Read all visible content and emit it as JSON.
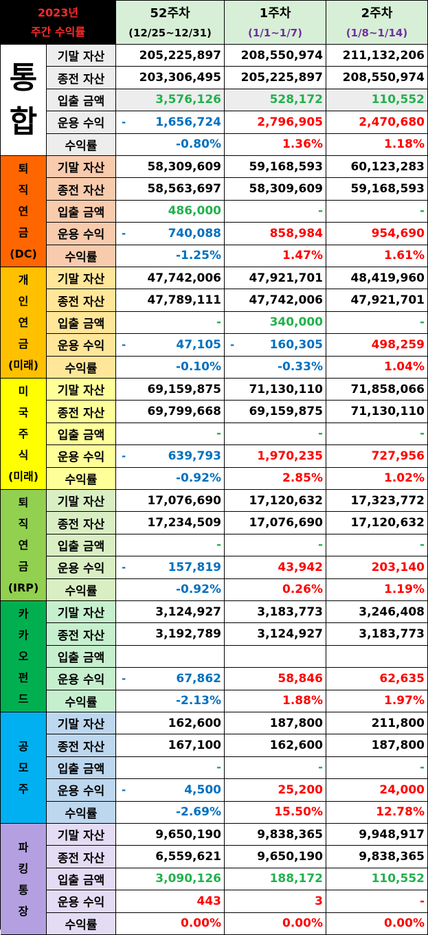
{
  "header": {
    "year_label": "2023년",
    "subtitle": "주간 수익률",
    "weeks": [
      {
        "week": "52주차",
        "range": "(12/25~12/31)",
        "range_color": "#000000"
      },
      {
        "week": "1주차",
        "range": "(1/1~1/7)",
        "range_color": "#7030a0"
      },
      {
        "week": "2주차",
        "range": "(1/8~1/14)",
        "range_color": "#7030a0"
      }
    ]
  },
  "row_labels": [
    "기말 자산",
    "종전 자산",
    "입출 금액",
    "운용 수익",
    "수익률"
  ],
  "groups": [
    {
      "id": "total",
      "title": [
        "통",
        "합"
      ],
      "big": true,
      "title_color": "#000000",
      "title_bg": "#ffffff",
      "label_bg": "#ededed",
      "row_bg": [
        "#ffffff",
        "#ffffff",
        "#ededed",
        "#ffffff",
        "#ffffff"
      ],
      "rows": [
        [
          {
            "v": "205,225,897",
            "c": "black"
          },
          {
            "v": "208,550,974",
            "c": "black"
          },
          {
            "v": "211,132,206",
            "c": "black"
          }
        ],
        [
          {
            "v": "203,306,495",
            "c": "black"
          },
          {
            "v": "205,225,897",
            "c": "black"
          },
          {
            "v": "208,550,974",
            "c": "black"
          }
        ],
        [
          {
            "v": "3,576,126",
            "c": "green"
          },
          {
            "v": "528,172",
            "c": "green"
          },
          {
            "v": "110,552",
            "c": "green"
          }
        ],
        [
          {
            "v": "1,656,724",
            "c": "blue",
            "dash": "-"
          },
          {
            "v": "2,796,905",
            "c": "red"
          },
          {
            "v": "2,470,680",
            "c": "red"
          }
        ],
        [
          {
            "v": "-0.80%",
            "c": "blue"
          },
          {
            "v": "1.36%",
            "c": "red"
          },
          {
            "v": "1.18%",
            "c": "red"
          }
        ]
      ]
    },
    {
      "id": "pension-dc",
      "title": [
        "퇴",
        "직",
        "연",
        "금",
        "(DC)"
      ],
      "big": false,
      "title_color": "#000000",
      "title_bg": "#ff6600",
      "label_bg": "#f8cbad",
      "row_bg": [
        "#ffffff",
        "#ffffff",
        "#ffffff",
        "#ffffff",
        "#ffffff"
      ],
      "rows": [
        [
          {
            "v": "58,309,609",
            "c": "black"
          },
          {
            "v": "59,168,593",
            "c": "black"
          },
          {
            "v": "60,123,283",
            "c": "black"
          }
        ],
        [
          {
            "v": "58,563,697",
            "c": "black"
          },
          {
            "v": "58,309,609",
            "c": "black"
          },
          {
            "v": "59,168,593",
            "c": "black"
          }
        ],
        [
          {
            "v": "486,000",
            "c": "green"
          },
          {
            "v": "-",
            "c": "green"
          },
          {
            "v": "-",
            "c": "green"
          }
        ],
        [
          {
            "v": "740,088",
            "c": "blue",
            "dash": "-"
          },
          {
            "v": "858,984",
            "c": "red"
          },
          {
            "v": "954,690",
            "c": "red"
          }
        ],
        [
          {
            "v": "-1.25%",
            "c": "blue"
          },
          {
            "v": "1.47%",
            "c": "red"
          },
          {
            "v": "1.61%",
            "c": "red"
          }
        ]
      ]
    },
    {
      "id": "personal-pension",
      "title": [
        "개",
        "인",
        "연",
        "금",
        "(미래)"
      ],
      "big": false,
      "title_color": "#000000",
      "title_bg": "#ffc000",
      "label_bg": "#ffe699",
      "row_bg": [
        "#ffffff",
        "#ffffff",
        "#ffffff",
        "#ffffff",
        "#ffffff"
      ],
      "rows": [
        [
          {
            "v": "47,742,006",
            "c": "black"
          },
          {
            "v": "47,921,701",
            "c": "black"
          },
          {
            "v": "48,419,960",
            "c": "black"
          }
        ],
        [
          {
            "v": "47,789,111",
            "c": "black"
          },
          {
            "v": "47,742,006",
            "c": "black"
          },
          {
            "v": "47,921,701",
            "c": "black"
          }
        ],
        [
          {
            "v": "-",
            "c": "green"
          },
          {
            "v": "340,000",
            "c": "green"
          },
          {
            "v": "-",
            "c": "green"
          }
        ],
        [
          {
            "v": "47,105",
            "c": "blue",
            "dash": "-"
          },
          {
            "v": "160,305",
            "c": "blue",
            "dash": "-"
          },
          {
            "v": "498,259",
            "c": "red"
          }
        ],
        [
          {
            "v": "-0.10%",
            "c": "blue"
          },
          {
            "v": "-0.33%",
            "c": "blue"
          },
          {
            "v": "1.04%",
            "c": "red"
          }
        ]
      ]
    },
    {
      "id": "us-stocks",
      "title": [
        "미",
        "국",
        "주",
        "식",
        "(미래)"
      ],
      "big": false,
      "title_color": "#000000",
      "title_bg": "#ffff00",
      "label_bg": "#ffff99",
      "row_bg": [
        "#ffffff",
        "#ffffff",
        "#ffffff",
        "#ffffff",
        "#ffffff"
      ],
      "rows": [
        [
          {
            "v": "69,159,875",
            "c": "black"
          },
          {
            "v": "71,130,110",
            "c": "black"
          },
          {
            "v": "71,858,066",
            "c": "black"
          }
        ],
        [
          {
            "v": "69,799,668",
            "c": "black"
          },
          {
            "v": "69,159,875",
            "c": "black"
          },
          {
            "v": "71,130,110",
            "c": "black"
          }
        ],
        [
          {
            "v": "-",
            "c": "green"
          },
          {
            "v": "-",
            "c": "green"
          },
          {
            "v": "-",
            "c": "green"
          }
        ],
        [
          {
            "v": "639,793",
            "c": "blue",
            "dash": "-"
          },
          {
            "v": "1,970,235",
            "c": "red"
          },
          {
            "v": "727,956",
            "c": "red"
          }
        ],
        [
          {
            "v": "-0.92%",
            "c": "blue"
          },
          {
            "v": "2.85%",
            "c": "red"
          },
          {
            "v": "1.02%",
            "c": "red"
          }
        ]
      ]
    },
    {
      "id": "pension-irp",
      "title": [
        "퇴",
        "직",
        "연",
        "금",
        "(IRP)"
      ],
      "big": false,
      "title_color": "#000000",
      "title_bg": "#92d050",
      "label_bg": "#d9efc3",
      "row_bg": [
        "#ffffff",
        "#ffffff",
        "#ffffff",
        "#ffffff",
        "#ffffff"
      ],
      "rows": [
        [
          {
            "v": "17,076,690",
            "c": "black"
          },
          {
            "v": "17,120,632",
            "c": "black"
          },
          {
            "v": "17,323,772",
            "c": "black"
          }
        ],
        [
          {
            "v": "17,234,509",
            "c": "black"
          },
          {
            "v": "17,076,690",
            "c": "black"
          },
          {
            "v": "17,120,632",
            "c": "black"
          }
        ],
        [
          {
            "v": "-",
            "c": "green"
          },
          {
            "v": "-",
            "c": "green"
          },
          {
            "v": "-",
            "c": "green"
          }
        ],
        [
          {
            "v": "157,819",
            "c": "blue",
            "dash": "-"
          },
          {
            "v": "43,942",
            "c": "red"
          },
          {
            "v": "203,140",
            "c": "red"
          }
        ],
        [
          {
            "v": "-0.92%",
            "c": "blue"
          },
          {
            "v": "0.26%",
            "c": "red"
          },
          {
            "v": "1.19%",
            "c": "red"
          }
        ]
      ]
    },
    {
      "id": "kakao-fund",
      "title": [
        "카",
        "카",
        "오",
        "펀",
        "드"
      ],
      "big": false,
      "title_color": "#000000",
      "title_bg": "#00b050",
      "label_bg": "#c6efce",
      "row_bg": [
        "#ffffff",
        "#ffffff",
        "#ffffff",
        "#ffffff",
        "#ffffff"
      ],
      "rows": [
        [
          {
            "v": "3,124,927",
            "c": "black"
          },
          {
            "v": "3,183,773",
            "c": "black"
          },
          {
            "v": "3,246,408",
            "c": "black"
          }
        ],
        [
          {
            "v": "3,192,789",
            "c": "black"
          },
          {
            "v": "3,124,927",
            "c": "black"
          },
          {
            "v": "3,183,773",
            "c": "black"
          }
        ],
        [
          {
            "v": "",
            "c": "green"
          },
          {
            "v": "",
            "c": "green"
          },
          {
            "v": "",
            "c": "green"
          }
        ],
        [
          {
            "v": "67,862",
            "c": "blue",
            "dash": "-"
          },
          {
            "v": "58,846",
            "c": "red"
          },
          {
            "v": "62,635",
            "c": "red"
          }
        ],
        [
          {
            "v": "-2.13%",
            "c": "blue"
          },
          {
            "v": "1.88%",
            "c": "red"
          },
          {
            "v": "1.97%",
            "c": "red"
          }
        ]
      ]
    },
    {
      "id": "ipo",
      "title": [
        "공",
        "모",
        "주"
      ],
      "big": false,
      "title_color": "#000000",
      "title_bg": "#00b0f0",
      "label_bg": "#bdd7ee",
      "row_bg": [
        "#ffffff",
        "#ffffff",
        "#ffffff",
        "#ffffff",
        "#ffffff"
      ],
      "rows": [
        [
          {
            "v": "162,600",
            "c": "black"
          },
          {
            "v": "187,800",
            "c": "black"
          },
          {
            "v": "211,800",
            "c": "black"
          }
        ],
        [
          {
            "v": "167,100",
            "c": "black"
          },
          {
            "v": "162,600",
            "c": "black"
          },
          {
            "v": "187,800",
            "c": "black"
          }
        ],
        [
          {
            "v": "-",
            "c": "green"
          },
          {
            "v": "-",
            "c": "green"
          },
          {
            "v": "-",
            "c": "green"
          }
        ],
        [
          {
            "v": "4,500",
            "c": "blue",
            "dash": "-"
          },
          {
            "v": "25,200",
            "c": "red"
          },
          {
            "v": "24,000",
            "c": "red"
          }
        ],
        [
          {
            "v": "-2.69%",
            "c": "blue"
          },
          {
            "v": "15.50%",
            "c": "red"
          },
          {
            "v": "12.78%",
            "c": "red"
          }
        ]
      ]
    },
    {
      "id": "parking-account",
      "title": [
        "파",
        "킹",
        "통",
        "장"
      ],
      "big": false,
      "title_color": "#000000",
      "title_bg": "#b4a0e0",
      "label_bg": "#e4dcf4",
      "row_bg": [
        "#ffffff",
        "#ffffff",
        "#ffffff",
        "#ffffff",
        "#ffffff"
      ],
      "rows": [
        [
          {
            "v": "9,650,190",
            "c": "black"
          },
          {
            "v": "9,838,365",
            "c": "black"
          },
          {
            "v": "9,948,917",
            "c": "black"
          }
        ],
        [
          {
            "v": "6,559,621",
            "c": "black"
          },
          {
            "v": "9,650,190",
            "c": "black"
          },
          {
            "v": "9,838,365",
            "c": "black"
          }
        ],
        [
          {
            "v": "3,090,126",
            "c": "green"
          },
          {
            "v": "188,172",
            "c": "green"
          },
          {
            "v": "110,552",
            "c": "green"
          }
        ],
        [
          {
            "v": "443",
            "c": "red"
          },
          {
            "v": "3",
            "c": "red"
          },
          {
            "v": "-",
            "c": "red"
          }
        ],
        [
          {
            "v": "0.00%",
            "c": "red"
          },
          {
            "v": "0.00%",
            "c": "red"
          },
          {
            "v": "0.00%",
            "c": "red"
          }
        ]
      ]
    }
  ]
}
